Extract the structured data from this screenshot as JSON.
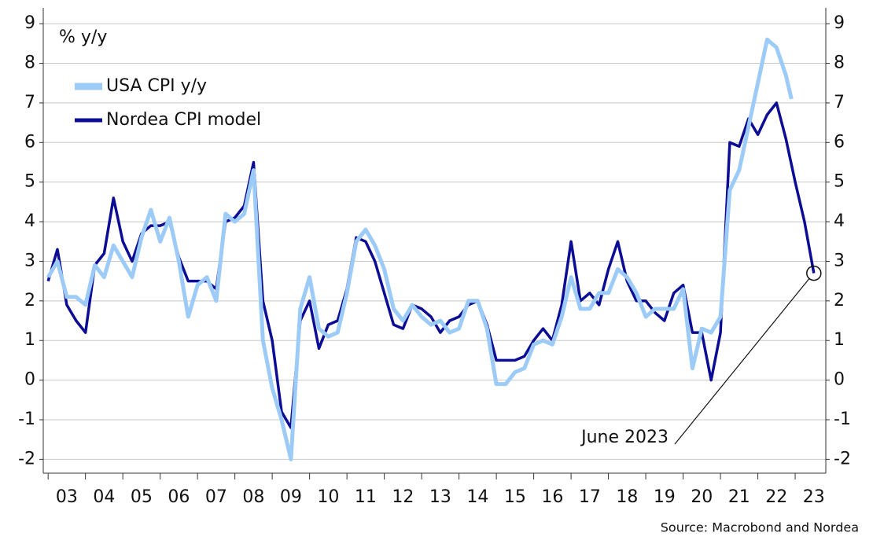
{
  "chart_data": {
    "type": "line",
    "axis_label": "% y/y",
    "source": "Source: Macrobond and Nordea",
    "xlim": [
      2002.87,
      2023.82
    ],
    "xticks": [
      {
        "value": 2003,
        "label": "03"
      },
      {
        "value": 2004,
        "label": "04"
      },
      {
        "value": 2005,
        "label": "05"
      },
      {
        "value": 2006,
        "label": "06"
      },
      {
        "value": 2007,
        "label": "07"
      },
      {
        "value": 2008,
        "label": "08"
      },
      {
        "value": 2009,
        "label": "09"
      },
      {
        "value": 2010,
        "label": "10"
      },
      {
        "value": 2011,
        "label": "11"
      },
      {
        "value": 2012,
        "label": "12"
      },
      {
        "value": 2013,
        "label": "13"
      },
      {
        "value": 2014,
        "label": "14"
      },
      {
        "value": 2015,
        "label": "15"
      },
      {
        "value": 2016,
        "label": "16"
      },
      {
        "value": 2017,
        "label": "17"
      },
      {
        "value": 2018,
        "label": "18"
      },
      {
        "value": 2019,
        "label": "19"
      },
      {
        "value": 2020,
        "label": "20"
      },
      {
        "value": 2021,
        "label": "21"
      },
      {
        "value": 2022,
        "label": "22"
      },
      {
        "value": 2023,
        "label": "23"
      }
    ],
    "ylim": [
      -2.35,
      9.4
    ],
    "yticks": [
      -2,
      -1,
      0,
      1,
      2,
      3,
      4,
      5,
      6,
      7,
      8,
      9
    ],
    "y2lim": [
      -2.35,
      9.4
    ],
    "y2ticks": [
      -2,
      -1,
      0,
      1,
      2,
      3,
      4,
      5,
      6,
      7,
      8,
      9
    ],
    "grid": true,
    "legend": "upper left",
    "series": [
      {
        "name": "USA CPI y/y",
        "color": "#9ccbf8",
        "width": 5,
        "x": [
          2003,
          2003.25,
          2003.5,
          2003.75,
          2004,
          2004.25,
          2004.5,
          2004.75,
          2005,
          2005.25,
          2005.5,
          2005.75,
          2006,
          2006.25,
          2006.5,
          2006.75,
          2007,
          2007.25,
          2007.5,
          2007.75,
          2008,
          2008.25,
          2008.5,
          2008.75,
          2009,
          2009.25,
          2009.5,
          2009.75,
          2010,
          2010.25,
          2010.5,
          2010.75,
          2011,
          2011.25,
          2011.5,
          2011.75,
          2012,
          2012.25,
          2012.5,
          2012.75,
          2013,
          2013.25,
          2013.5,
          2013.75,
          2014,
          2014.25,
          2014.5,
          2014.75,
          2015,
          2015.25,
          2015.5,
          2015.75,
          2016,
          2016.25,
          2016.5,
          2016.75,
          2017,
          2017.25,
          2017.5,
          2017.75,
          2018,
          2018.25,
          2018.5,
          2018.75,
          2019,
          2019.25,
          2019.5,
          2019.75,
          2020,
          2020.25,
          2020.5,
          2020.75,
          2021,
          2021.25,
          2021.5,
          2021.75,
          2022,
          2022.25,
          2022.5,
          2022.75,
          2022.9
        ],
        "values": [
          2.6,
          3.0,
          2.1,
          2.1,
          1.9,
          2.9,
          2.6,
          3.4,
          3.0,
          2.6,
          3.6,
          4.3,
          3.5,
          4.1,
          3.0,
          1.6,
          2.4,
          2.6,
          2.0,
          4.2,
          4.0,
          4.2,
          5.3,
          1.0,
          -0.2,
          -1.0,
          -2.0,
          1.8,
          2.6,
          1.3,
          1.1,
          1.2,
          2.2,
          3.5,
          3.8,
          3.4,
          2.8,
          1.8,
          1.5,
          1.9,
          1.6,
          1.4,
          1.5,
          1.2,
          1.3,
          2.0,
          2.0,
          1.3,
          -0.1,
          -0.1,
          0.2,
          0.3,
          0.9,
          1.0,
          0.9,
          1.6,
          2.6,
          1.8,
          1.8,
          2.2,
          2.2,
          2.8,
          2.6,
          2.2,
          1.6,
          1.8,
          1.8,
          1.8,
          2.3,
          0.3,
          1.3,
          1.2,
          1.6,
          4.8,
          5.3,
          6.4,
          7.5,
          8.6,
          8.4,
          7.7,
          7.1
        ]
      },
      {
        "name": "Nordea CPI model",
        "color": "#0c0c94",
        "width": 3.5,
        "x": [
          2003,
          2003.25,
          2003.5,
          2003.75,
          2004,
          2004.25,
          2004.5,
          2004.75,
          2005,
          2005.25,
          2005.5,
          2005.75,
          2006,
          2006.25,
          2006.5,
          2006.75,
          2007,
          2007.25,
          2007.5,
          2007.75,
          2008,
          2008.25,
          2008.5,
          2008.75,
          2009,
          2009.25,
          2009.5,
          2009.75,
          2010,
          2010.25,
          2010.5,
          2010.75,
          2011,
          2011.25,
          2011.5,
          2011.75,
          2012,
          2012.25,
          2012.5,
          2012.75,
          2013,
          2013.25,
          2013.5,
          2013.75,
          2014,
          2014.25,
          2014.5,
          2014.75,
          2015,
          2015.25,
          2015.5,
          2015.75,
          2016,
          2016.25,
          2016.5,
          2016.75,
          2017,
          2017.25,
          2017.5,
          2017.75,
          2018,
          2018.25,
          2018.5,
          2018.75,
          2019,
          2019.25,
          2019.5,
          2019.75,
          2020,
          2020.25,
          2020.5,
          2020.75,
          2021,
          2021.25,
          2021.5,
          2021.75,
          2022,
          2022.25,
          2022.5,
          2022.75,
          2023,
          2023.25,
          2023.5
        ],
        "values": [
          2.5,
          3.3,
          1.9,
          1.5,
          1.2,
          2.9,
          3.2,
          4.6,
          3.5,
          3.0,
          3.7,
          3.9,
          3.9,
          4.0,
          3.1,
          2.5,
          2.5,
          2.5,
          2.3,
          4.0,
          4.1,
          4.4,
          5.5,
          2.0,
          1.0,
          -0.8,
          -1.2,
          1.5,
          2.0,
          0.8,
          1.4,
          1.5,
          2.3,
          3.6,
          3.5,
          3.0,
          2.2,
          1.4,
          1.3,
          1.9,
          1.8,
          1.6,
          1.2,
          1.5,
          1.6,
          1.9,
          2.0,
          1.4,
          0.5,
          0.5,
          0.5,
          0.6,
          1.0,
          1.3,
          1.0,
          1.9,
          3.5,
          2.0,
          2.2,
          1.9,
          2.8,
          3.5,
          2.5,
          2.0,
          2.0,
          1.7,
          1.5,
          2.2,
          2.4,
          1.2,
          1.2,
          0.0,
          1.2,
          6.0,
          5.9,
          6.6,
          6.2,
          6.7,
          7.0,
          6.1,
          5.0,
          4.0,
          2.7
        ]
      }
    ],
    "annotation": {
      "text": "June 2023",
      "x": 2023.5,
      "y": 2.7
    }
  }
}
